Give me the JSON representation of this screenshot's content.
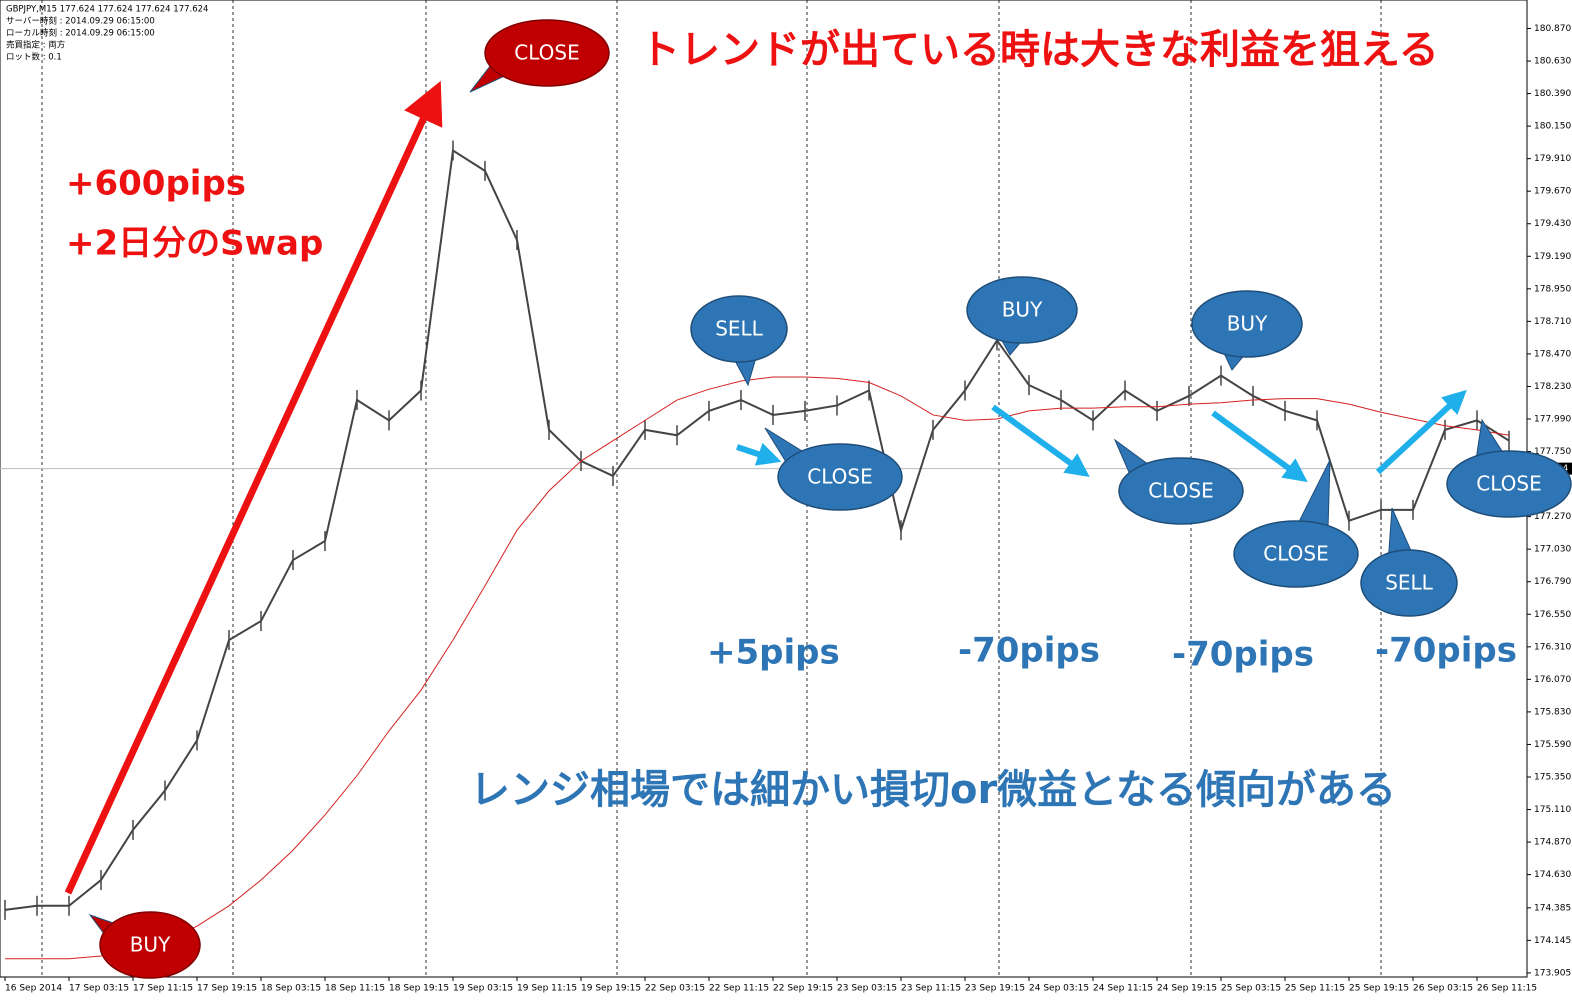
{
  "chart_data": {
    "type": "line",
    "title": "トレンドが出ている時は大きな利益を狙える",
    "info": [
      "GBPJPY,M15  177.624 177.624 177.624 177.624",
      "サーバー時刻 : 2014.09.29 06:15:00",
      "ローカル時刻 : 2014.09.29 06:15:00",
      "売買指定 : 両方",
      "ロット数 : 0.1"
    ],
    "categories": [
      "16 Sep 2014",
      null,
      "17 Sep 03:15",
      null,
      "17 Sep 11:15",
      null,
      "17 Sep 19:15",
      null,
      "18 Sep 03:15",
      null,
      "18 Sep 11:15",
      null,
      "18 Sep 19:15",
      null,
      "19 Sep 03:15",
      null,
      "19 Sep 11:15",
      null,
      "19 Sep 19:15",
      null,
      "22 Sep 03:15",
      null,
      "22 Sep 11:15",
      null,
      "22 Sep 19:15",
      null,
      "23 Sep 03:15",
      null,
      "23 Sep 11:15",
      null,
      "23 Sep 19:15",
      null,
      "24 Sep 03:15",
      null,
      "24 Sep 11:15",
      null,
      "24 Sep 19:15",
      null,
      "25 Sep 03:15",
      null,
      "25 Sep 11:15",
      null,
      "25 Sep 19:15",
      null,
      "26 Sep 03:15",
      null,
      "26 Sep 11:15",
      null
    ],
    "series": [
      {
        "color": "#444444",
        "values": [
          174.37,
          174.4,
          174.4,
          174.59,
          174.96,
          175.25,
          175.62,
          176.36,
          176.5,
          176.95,
          177.09,
          178.13,
          177.98,
          178.2,
          179.97,
          179.82,
          179.31,
          177.91,
          177.68,
          177.57,
          177.91,
          177.87,
          178.05,
          178.13,
          178.02,
          178.05,
          178.09,
          178.2,
          177.17,
          177.91,
          178.2,
          178.57,
          178.24,
          178.13,
          177.98,
          178.2,
          178.05,
          178.16,
          178.31,
          178.16,
          178.05,
          177.98,
          177.24,
          177.32,
          177.32,
          177.91,
          177.98,
          177.83
        ]
      },
      {
        "color": "#d62020",
        "values": [
          174.01,
          174.01,
          174.01,
          174.03,
          174.07,
          174.14,
          174.25,
          174.4,
          174.59,
          174.81,
          175.07,
          175.36,
          175.69,
          175.99,
          176.36,
          176.76,
          177.17,
          177.46,
          177.68,
          177.83,
          177.98,
          178.13,
          178.21,
          178.27,
          178.3,
          178.3,
          178.29,
          178.26,
          178.16,
          178.02,
          177.98,
          177.99,
          178.05,
          178.07,
          178.07,
          178.08,
          178.08,
          178.1,
          178.11,
          178.13,
          178.14,
          178.14,
          178.1,
          178.04,
          177.99,
          177.94,
          177.91,
          177.87
        ]
      }
    ],
    "current_price": 177.624,
    "ylim": [
      173.875,
      181.08
    ],
    "yticks": [
      {
        "value": 180.87,
        "label": "180.870"
      },
      {
        "value": 180.63,
        "label": "180.630"
      },
      {
        "value": 180.39,
        "label": "180.390"
      },
      {
        "value": 180.15,
        "label": "180.150"
      },
      {
        "value": 179.91,
        "label": "179.910"
      },
      {
        "value": 179.67,
        "label": "179.670"
      },
      {
        "value": 179.43,
        "label": "179.430"
      },
      {
        "value": 179.19,
        "label": "179.190"
      },
      {
        "value": 178.95,
        "label": "178.950"
      },
      {
        "value": 178.71,
        "label": "178.710"
      },
      {
        "value": 178.47,
        "label": "178.470"
      },
      {
        "value": 178.23,
        "label": "178.230"
      },
      {
        "value": 177.99,
        "label": "177.990"
      },
      {
        "value": 177.75,
        "label": "177.750"
      },
      {
        "value": 177.27,
        "label": "177.270"
      },
      {
        "value": 177.03,
        "label": "177.030"
      },
      {
        "value": 176.79,
        "label": "176.790"
      },
      {
        "value": 176.55,
        "label": "176.550"
      },
      {
        "value": 176.31,
        "label": "176.310"
      },
      {
        "value": 176.07,
        "label": "176.070"
      },
      {
        "value": 175.83,
        "label": "175.830"
      },
      {
        "value": 175.59,
        "label": "175.590"
      },
      {
        "value": 175.35,
        "label": "175.350"
      },
      {
        "value": 175.11,
        "label": "175.110"
      },
      {
        "value": 174.87,
        "label": "174.870"
      },
      {
        "value": 174.63,
        "label": "174.630"
      },
      174.385,
      174.145,
      173.905
    ],
    "callouts": [
      "BUY",
      "CLOSE",
      "SELL",
      "CLOSE",
      "BUY",
      "CLOSE",
      "BUY",
      "CLOSE",
      "SELL",
      "CLOSE"
    ],
    "results": [
      "+600pips",
      "+2日分のSwap",
      "+5pips",
      "-70pips",
      "-70pips",
      "-70pips"
    ],
    "note": "レンジ相場では細かい損切or微益となる傾向がある"
  }
}
